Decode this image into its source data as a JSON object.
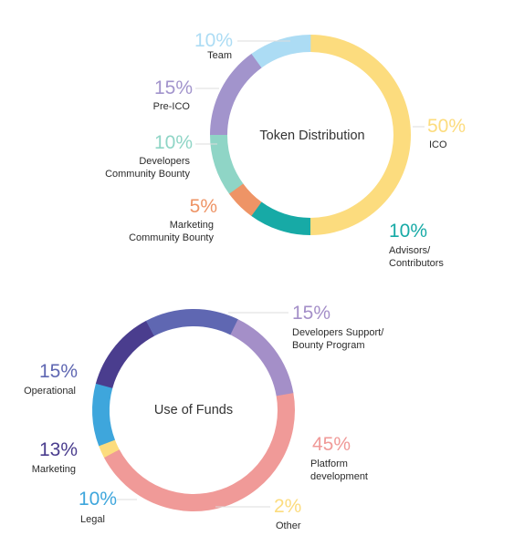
{
  "chart_data": [
    {
      "type": "pie",
      "title": "Token Distribution",
      "slices": [
        {
          "label": "ICO",
          "value": 50,
          "pct_text": "50%",
          "color": "#fcdc7e"
        },
        {
          "label": "Advisors/ Contributors",
          "value": 10,
          "pct_text": "10%",
          "color": "#17aaa6"
        },
        {
          "label": "Marketing Community Bounty",
          "value": 5,
          "pct_text": "5%",
          "color": "#ee9466"
        },
        {
          "label": "Developers Community Bounty",
          "value": 10,
          "pct_text": "10%",
          "color": "#8fd5c6"
        },
        {
          "label": "Pre-ICO",
          "value": 15,
          "pct_text": "15%",
          "color": "#a294cc"
        },
        {
          "label": "Team",
          "value": 10,
          "pct_text": "10%",
          "color": "#acdcf4"
        }
      ]
    },
    {
      "type": "pie",
      "title": "Use of Funds",
      "slices": [
        {
          "label": "Platform development",
          "value": 45,
          "pct_text": "45%",
          "color": "#f09a98"
        },
        {
          "label": "Other",
          "value": 2,
          "pct_text": "2%",
          "color": "#fcdc7e"
        },
        {
          "label": "Legal",
          "value": 10,
          "pct_text": "10%",
          "color": "#3ea6dc"
        },
        {
          "label": "Marketing",
          "value": 13,
          "pct_text": "13%",
          "color": "#4a3d8e"
        },
        {
          "label": "Operational",
          "value": 15,
          "pct_text": "15%",
          "color": "#5f67b2"
        },
        {
          "label": "Developers Support/ Bounty Program",
          "value": 15,
          "pct_text": "15%",
          "color": "#a48fc8"
        }
      ]
    }
  ]
}
